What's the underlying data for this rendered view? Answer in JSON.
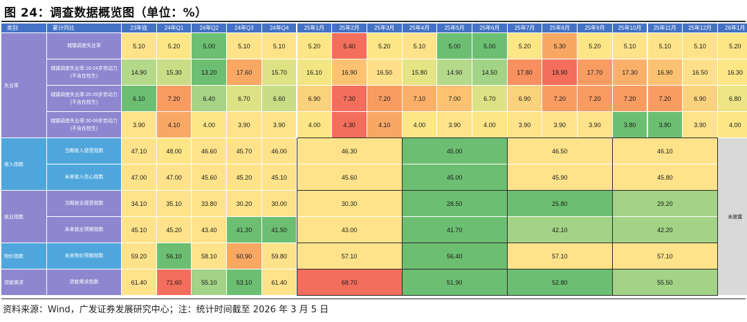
{
  "title": "图 24：调查数据概览图（单位：%）",
  "source_note": "资料来源：Wind，广发证券发展研究中心；注：统计时间截至 2026 年 3 月 5 日",
  "header": {
    "category": "类别",
    "item": "累计同比",
    "periods": [
      "23年底",
      "24年Q1",
      "24年Q2",
      "24年Q3",
      "24年Q4",
      "25年1月",
      "25年2月",
      "25年3月",
      "25年4月",
      "25年5月",
      "25年6月",
      "25年7月",
      "25年8月",
      "25年9月",
      "25年10月",
      "25年11月",
      "25年12月",
      "26年1月"
    ]
  },
  "groups": [
    {
      "name": "失业率",
      "style": "purple"
    },
    {
      "name": "收入指数",
      "style": "blue"
    },
    {
      "name": "就业指数",
      "style": "purple"
    },
    {
      "name": "物价指数",
      "style": "blue"
    },
    {
      "name": "贷款需求",
      "style": "purple"
    }
  ],
  "not_published": "未披露",
  "rows": [
    {
      "group": 0,
      "label": "城镇调查失业率",
      "cells": [
        {
          "v": "5.10",
          "c": "#fee38a"
        },
        {
          "v": "5.20",
          "c": "#fde686"
        },
        {
          "v": "5.00",
          "c": "#6cbf72"
        },
        {
          "v": "5.10",
          "c": "#fee38a"
        },
        {
          "v": "5.10",
          "c": "#fee38a"
        },
        {
          "v": "5.20",
          "c": "#fde686"
        },
        {
          "v": "5.40",
          "c": "#f36e5c"
        },
        {
          "v": "5.20",
          "c": "#fde686"
        },
        {
          "v": "5.10",
          "c": "#fee38a"
        },
        {
          "v": "5.00",
          "c": "#6cbf72"
        },
        {
          "v": "5.00",
          "c": "#6cbf72"
        },
        {
          "v": "5.20",
          "c": "#fde686"
        },
        {
          "v": "5.30",
          "c": "#f9a864"
        },
        {
          "v": "5.20",
          "c": "#fde686"
        },
        {
          "v": "5.10",
          "c": "#fee38a"
        },
        {
          "v": "5.10",
          "c": "#fee38a"
        },
        {
          "v": "5.10",
          "c": "#fee38a"
        },
        {
          "v": "5.20",
          "c": "#fde686"
        }
      ]
    },
    {
      "group": 0,
      "label": "城镇调查失业率:16-24岁劳动力(不含在校生)",
      "cells": [
        {
          "v": "14.90",
          "c": "#b4d98a"
        },
        {
          "v": "15.30",
          "c": "#c8dd86"
        },
        {
          "v": "13.20",
          "c": "#6cbf72"
        },
        {
          "v": "17.60",
          "c": "#f9a864"
        },
        {
          "v": "15.70",
          "c": "#dde384"
        },
        {
          "v": "16.10",
          "c": "#f1e683"
        },
        {
          "v": "16.90",
          "c": "#fcc272"
        },
        {
          "v": "16.50",
          "c": "#fee08a"
        },
        {
          "v": "15.80",
          "c": "#e4e484"
        },
        {
          "v": "14.90",
          "c": "#b4d98a"
        },
        {
          "v": "14.50",
          "c": "#a2d386"
        },
        {
          "v": "17.80",
          "c": "#f89060"
        },
        {
          "v": "18.90",
          "c": "#f36e5c"
        },
        {
          "v": "17.70",
          "c": "#f99c62"
        },
        {
          "v": "17.30",
          "c": "#fbb06a"
        },
        {
          "v": "16.90",
          "c": "#fcc272"
        },
        {
          "v": "16.50",
          "c": "#fee08a"
        },
        {
          "v": "16.30",
          "c": "#fde686"
        }
      ]
    },
    {
      "group": 0,
      "label": "城镇调查失业率:25-29岁劳动力(不含在校生)",
      "cells": [
        {
          "v": "6.10",
          "c": "#6cbf72"
        },
        {
          "v": "7.20",
          "c": "#f99c62"
        },
        {
          "v": "6.40",
          "c": "#a6d386"
        },
        {
          "v": "6.70",
          "c": "#dde384"
        },
        {
          "v": "6.60",
          "c": "#c8dd86"
        },
        {
          "v": "6.90",
          "c": "#fbd27c"
        },
        {
          "v": "7.30",
          "c": "#f36e5c"
        },
        {
          "v": "7.20",
          "c": "#f99c62"
        },
        {
          "v": "7.10",
          "c": "#fbb06a"
        },
        {
          "v": "7.00",
          "c": "#fcc272"
        },
        {
          "v": "6.70",
          "c": "#dde384"
        },
        {
          "v": "6.90",
          "c": "#fbd27c"
        },
        {
          "v": "7.20",
          "c": "#f99c62"
        },
        {
          "v": "7.20",
          "c": "#f99c62"
        },
        {
          "v": "7.20",
          "c": "#f99c62"
        },
        {
          "v": "7.20",
          "c": "#f99c62"
        },
        {
          "v": "6.90",
          "c": "#fbd27c"
        },
        {
          "v": "6.80",
          "c": "#eee486"
        }
      ]
    },
    {
      "group": 0,
      "label": "城镇调查失业率:30-59岁劳动力(不含在校生)",
      "cells": [
        {
          "v": "3.90",
          "c": "#fee38a"
        },
        {
          "v": "4.10",
          "c": "#f9a864"
        },
        {
          "v": "4.00",
          "c": "#fde686"
        },
        {
          "v": "3.90",
          "c": "#fee38a"
        },
        {
          "v": "3.90",
          "c": "#fee38a"
        },
        {
          "v": "4.00",
          "c": "#fde686"
        },
        {
          "v": "4.30",
          "c": "#f36e5c"
        },
        {
          "v": "4.10",
          "c": "#f9a864"
        },
        {
          "v": "4.00",
          "c": "#fde686"
        },
        {
          "v": "3.90",
          "c": "#fee38a"
        },
        {
          "v": "4.00",
          "c": "#fde686"
        },
        {
          "v": "3.90",
          "c": "#fee38a"
        },
        {
          "v": "3.90",
          "c": "#fee38a"
        },
        {
          "v": "3.90",
          "c": "#fee38a"
        },
        {
          "v": "3.80",
          "c": "#6cbf72"
        },
        {
          "v": "3.80",
          "c": "#6cbf72"
        },
        {
          "v": "3.90",
          "c": "#fee38a"
        },
        {
          "v": "4.00",
          "c": "#fde686"
        }
      ]
    },
    {
      "group": 1,
      "label": "当期收入感受指数",
      "cells": [
        {
          "v": "47.10",
          "c": "#fee38a"
        },
        {
          "v": "48.00",
          "c": "#fde686"
        },
        {
          "v": "46.60",
          "c": "#fee38a"
        },
        {
          "v": "45.70",
          "c": "#fee38a"
        },
        {
          "v": "46.00",
          "c": "#fee38a"
        }
      ],
      "quarters": [
        {
          "v": "46.30",
          "c": "#fee38a"
        },
        {
          "v": "45.00",
          "c": "#6cbf72"
        },
        {
          "v": "46.50",
          "c": "#fee38a"
        },
        {
          "v": "46.10",
          "c": "#fee38a"
        }
      ]
    },
    {
      "group": 1,
      "label": "未来收入信心指数",
      "cells": [
        {
          "v": "47.00",
          "c": "#fee38a"
        },
        {
          "v": "47.00",
          "c": "#fee38a"
        },
        {
          "v": "45.60",
          "c": "#fee38a"
        },
        {
          "v": "45.20",
          "c": "#fee38a"
        },
        {
          "v": "45.10",
          "c": "#fee38a"
        }
      ],
      "quarters": [
        {
          "v": "45.60",
          "c": "#fee38a"
        },
        {
          "v": "45.00",
          "c": "#6cbf72"
        },
        {
          "v": "45.90",
          "c": "#fee38a"
        },
        {
          "v": "45.80",
          "c": "#fee38a"
        }
      ]
    },
    {
      "group": 2,
      "label": "当期就业感受指数",
      "cells": [
        {
          "v": "34.10",
          "c": "#fee38a"
        },
        {
          "v": "35.10",
          "c": "#fee38a"
        },
        {
          "v": "33.80",
          "c": "#fee38a"
        },
        {
          "v": "30.20",
          "c": "#fee38a"
        },
        {
          "v": "30.00",
          "c": "#fee38a"
        }
      ],
      "quarters": [
        {
          "v": "30.30",
          "c": "#fee38a"
        },
        {
          "v": "28.50",
          "c": "#6cbf72"
        },
        {
          "v": "25.80",
          "c": "#6cbf72"
        },
        {
          "v": "29.20",
          "c": "#a2d386"
        }
      ]
    },
    {
      "group": 2,
      "label": "未来就业预期指数",
      "cells": [
        {
          "v": "45.10",
          "c": "#fee38a"
        },
        {
          "v": "45.20",
          "c": "#fee38a"
        },
        {
          "v": "43.40",
          "c": "#fee38a"
        },
        {
          "v": "41.30",
          "c": "#6cbf72"
        },
        {
          "v": "41.50",
          "c": "#6cbf72"
        }
      ],
      "quarters": [
        {
          "v": "43.00",
          "c": "#fee38a"
        },
        {
          "v": "41.70",
          "c": "#6cbf72"
        },
        {
          "v": "42.10",
          "c": "#a2d386"
        },
        {
          "v": "42.20",
          "c": "#a2d386"
        }
      ]
    },
    {
      "group": 3,
      "label": "未来物价预期指数",
      "cells": [
        {
          "v": "59.20",
          "c": "#fee38a"
        },
        {
          "v": "56.10",
          "c": "#6cbf72"
        },
        {
          "v": "58.10",
          "c": "#fee38a"
        },
        {
          "v": "60.90",
          "c": "#f9a864"
        },
        {
          "v": "59.80",
          "c": "#fee38a"
        }
      ],
      "quarters": [
        {
          "v": "57.10",
          "c": "#fee38a"
        },
        {
          "v": "56.40",
          "c": "#6cbf72"
        },
        {
          "v": "57.10",
          "c": "#fee38a"
        },
        {
          "v": "57.10",
          "c": "#fee38a"
        }
      ]
    },
    {
      "group": 4,
      "label": "贷款需求指数",
      "cells": [
        {
          "v": "61.40",
          "c": "#fee38a"
        },
        {
          "v": "71.60",
          "c": "#f36e5c"
        },
        {
          "v": "55.10",
          "c": "#a2d386"
        },
        {
          "v": "53.10",
          "c": "#6cbf72"
        },
        {
          "v": "61.40",
          "c": "#fee38a"
        }
      ],
      "quarters": [
        {
          "v": "68.70",
          "c": "#f36e5c"
        },
        {
          "v": "51.90",
          "c": "#6cbf72"
        },
        {
          "v": "52.80",
          "c": "#6cbf72"
        },
        {
          "v": "55.50",
          "c": "#a2d386"
        }
      ]
    }
  ]
}
